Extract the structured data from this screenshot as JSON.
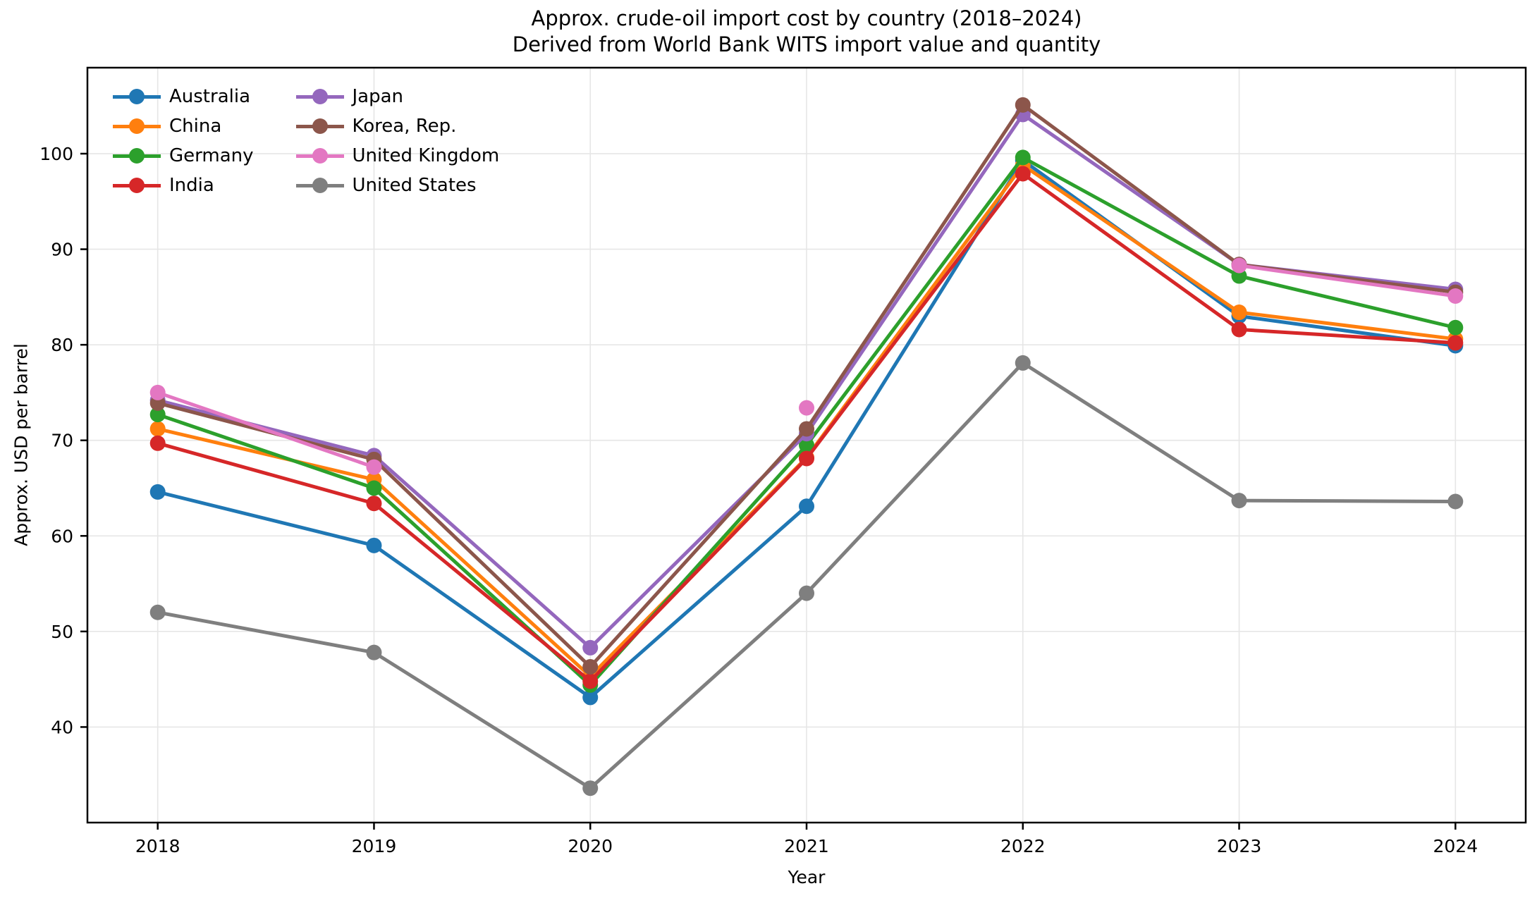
{
  "figure": {
    "title": "Approx. crude-oil import cost by country (2018–2024)",
    "subtitle": "Derived from World Bank WITS import value and quantity",
    "xlabel": "Year",
    "ylabel": "Approx. USD per barrel"
  },
  "chart_data": {
    "type": "line",
    "title": "Approx. crude-oil import cost by country (2018–2024)",
    "subtitle": "Derived from World Bank WITS import value and quantity",
    "xlabel": "Year",
    "ylabel": "Approx. USD per barrel",
    "x": [
      2018,
      2019,
      2020,
      2021,
      2022,
      2023,
      2024
    ],
    "x_tick_labels": [
      "2018",
      "2019",
      "2020",
      "2021",
      "2022",
      "2023",
      "2024"
    ],
    "y_ticks": [
      40,
      50,
      60,
      70,
      80,
      90,
      100
    ],
    "xlim": [
      2017.675,
      2024.325
    ],
    "ylim": [
      30,
      109
    ],
    "grid": true,
    "grid_color": "#e6e6e6",
    "marker": "circle",
    "legend_position": "upper-left, 2 columns, no frame",
    "series": [
      {
        "name": "Australia",
        "color": "#1f77b4",
        "values": [
          64.6,
          59.0,
          43.1,
          63.1,
          99.3,
          83.0,
          79.9
        ]
      },
      {
        "name": "China",
        "color": "#ff7f0e",
        "values": [
          71.2,
          65.9,
          45.3,
          68.2,
          98.8,
          83.4,
          80.6
        ]
      },
      {
        "name": "Germany",
        "color": "#2ca02c",
        "values": [
          72.7,
          65.0,
          44.4,
          69.5,
          99.6,
          87.2,
          81.8
        ]
      },
      {
        "name": "India",
        "color": "#d62728",
        "values": [
          69.7,
          63.4,
          44.8,
          68.1,
          97.9,
          81.6,
          80.2
        ]
      },
      {
        "name": "Japan",
        "color": "#9467bd",
        "values": [
          74.2,
          68.4,
          48.3,
          70.7,
          104.1,
          88.4,
          85.8
        ]
      },
      {
        "name": "Korea, Rep.",
        "color": "#8c564b",
        "values": [
          73.9,
          68.0,
          46.3,
          71.2,
          105.1,
          88.4,
          85.5
        ]
      },
      {
        "name": "United Kingdom",
        "color": "#e377c2",
        "values": [
          75.0,
          67.2,
          null,
          73.4,
          null,
          88.3,
          85.1
        ]
      },
      {
        "name": "United States",
        "color": "#7f7f7f",
        "values": [
          52.0,
          47.8,
          33.6,
          54.0,
          78.1,
          63.7,
          63.6
        ]
      }
    ]
  }
}
